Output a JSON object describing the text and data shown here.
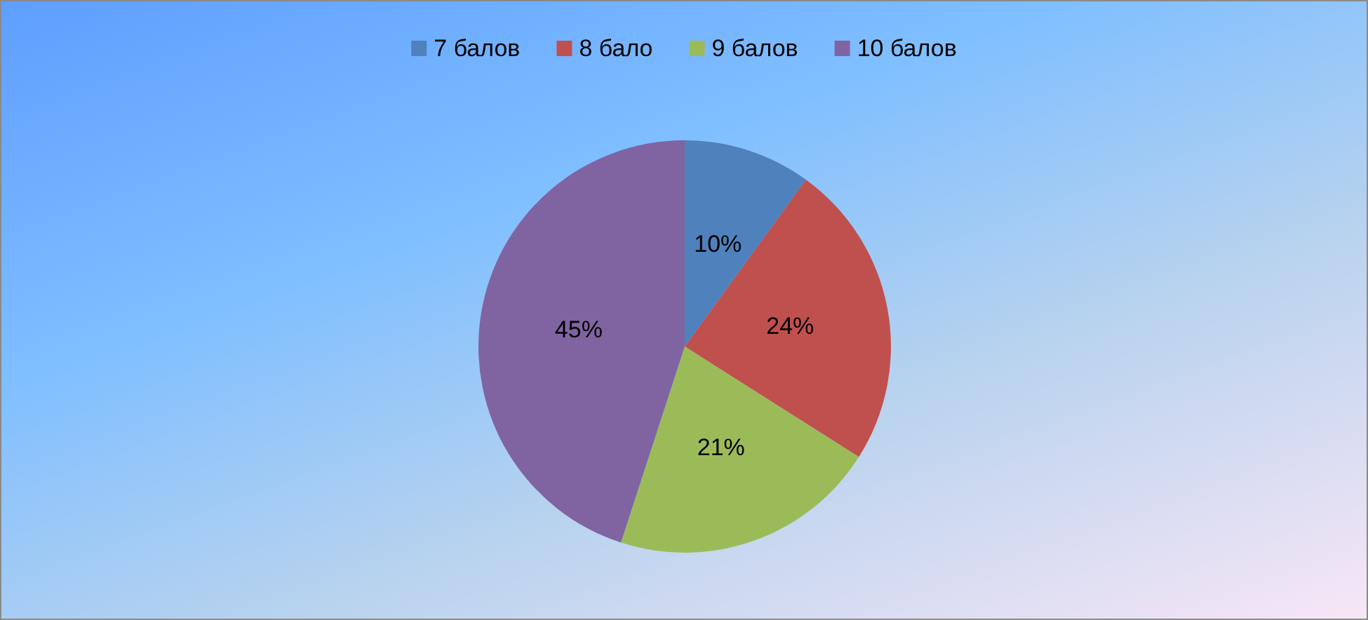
{
  "chart_data": {
    "type": "pie",
    "categories": [
      "7 балов",
      "8 бало",
      "9 балов",
      "10 балов"
    ],
    "values": [
      10,
      24,
      21,
      45
    ],
    "colors": [
      "#4f81bd",
      "#c0504d",
      "#9bbb59",
      "#8064a2"
    ],
    "value_labels": [
      "10%",
      "24%",
      "21%",
      "45%"
    ],
    "legend": "top"
  }
}
